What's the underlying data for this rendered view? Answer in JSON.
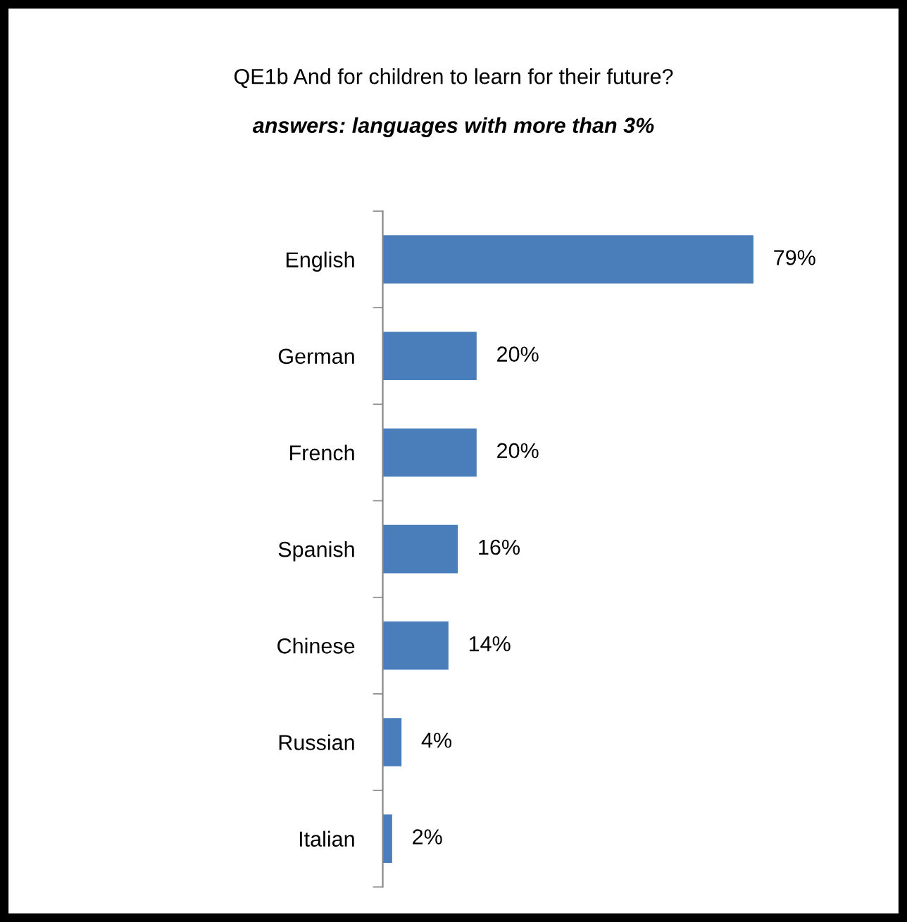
{
  "chart_data": {
    "type": "bar",
    "orientation": "horizontal",
    "title": "QE1b And for children to learn for their future?",
    "subtitle": "answers: languages with more than 3%",
    "categories": [
      "English",
      "German",
      "French",
      "Spanish",
      "Chinese",
      "Russian",
      "Italian"
    ],
    "values": [
      79,
      20,
      20,
      16,
      14,
      4,
      2
    ],
    "color": "#4a7ebb",
    "value_labels": [
      "79%",
      "20%",
      "20%",
      "16%",
      "14%",
      "4%",
      "2%"
    ],
    "grid": false,
    "legend": false
  }
}
